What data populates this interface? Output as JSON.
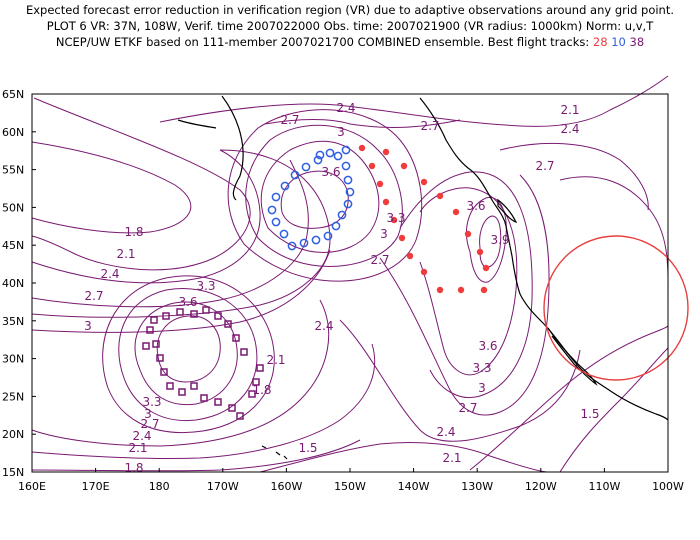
{
  "header": {
    "line1": "Expected forecast error reduction in verification region (VR) due to adaptive observations around any grid point.",
    "line2": "PLOT 6 VR: 37N, 108W, Verif. time 2007022000 Obs. time: 2007021900 (VR radius: 1000km) Norm: u,v,T",
    "line3_prefix": "NCEP/UW ETKF based on 111-member 2007021700 COMBINED ensemble.  Best flight tracks:",
    "track_red": "28",
    "track_blue": "10",
    "track_purple": "38"
  },
  "axes": {
    "lat_labels": [
      "65N",
      "60N",
      "55N",
      "50N",
      "45N",
      "40N",
      "35N",
      "30N",
      "25N",
      "20N",
      "15N"
    ],
    "lon_labels": [
      "160E",
      "170E",
      "180",
      "170W",
      "160W",
      "150W",
      "140W",
      "130W",
      "120W",
      "110W",
      "100W"
    ]
  },
  "colors": {
    "contour": "#7a1a72",
    "coast": "#000000",
    "track_red": "#f03c3c",
    "track_blue": "#3060e0",
    "track_purple": "#7a1a72",
    "vr_circle": "#e84040"
  },
  "contour_labels": [
    "2.4",
    "2.7",
    "3",
    "3.6",
    "2.7",
    "2.1",
    "2.4",
    "2.7",
    "3.6",
    "3.9",
    "3.3",
    "3",
    "2.7",
    "1.8",
    "2.1",
    "2.4",
    "2.7",
    "3",
    "3.3",
    "3.6",
    "3.3",
    "3",
    "2.7",
    "2.4",
    "2.1",
    "1.8",
    "2.4",
    "2.1",
    "1.8",
    "1.5",
    "3.6",
    "3.3",
    "3",
    "2.7",
    "2.4",
    "2.1",
    "1.5"
  ]
}
